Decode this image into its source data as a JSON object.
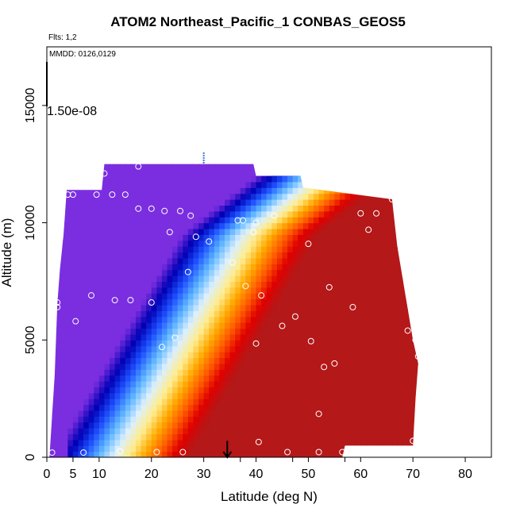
{
  "header": {
    "title": "ATOM2 Northeast_Pacific_1 CONBAS_GEOS5",
    "flights": "Flts: 1,2",
    "date_range": "MMDD: 0126,0129",
    "color_scale_label": "1.50e-08"
  },
  "chart_data": {
    "type": "heatmap",
    "title": "ATOM2 Northeast_Pacific_1 CONBAS_GEOS5",
    "xlabel": "Latitude (deg N)",
    "ylabel": "Altitude (m)",
    "xlim": [
      0,
      85
    ],
    "ylim": [
      0,
      17500
    ],
    "x_ticks": [
      0,
      5,
      10,
      20,
      30,
      40,
      50,
      60,
      70,
      80
    ],
    "x_minor_ticks": [
      37,
      47,
      57
    ],
    "y_ticks": [
      0,
      5000,
      10000,
      15000
    ],
    "grid": false,
    "colormap": [
      "#7b2ee0",
      "#0000b4",
      "#1e50ff",
      "#5cb4ff",
      "#dcf0ff",
      "#ffec8c",
      "#ffaa00",
      "#ff5a00",
      "#e00000",
      "#b41818"
    ],
    "curtain_profile": [
      {
        "lat": 0.5,
        "alt_top": 0
      },
      {
        "lat": 1.5,
        "alt_top": 3500
      },
      {
        "lat": 2,
        "alt_top": 6500
      },
      {
        "lat": 2.5,
        "alt_top": 8000
      },
      {
        "lat": 3.2,
        "alt_top": 9500
      },
      {
        "lat": 3.8,
        "alt_top": 11400
      },
      {
        "lat": 10.5,
        "alt_top": 11400
      },
      {
        "lat": 11,
        "alt_top": 12500
      },
      {
        "lat": 39.5,
        "alt_top": 12500
      },
      {
        "lat": 40,
        "alt_top": 12000
      },
      {
        "lat": 48.5,
        "alt_top": 12000
      },
      {
        "lat": 49,
        "alt_top": 11500
      },
      {
        "lat": 66,
        "alt_top": 11000
      },
      {
        "lat": 67,
        "alt_top": 9000
      },
      {
        "lat": 68.5,
        "alt_top": 7000
      },
      {
        "lat": 70,
        "alt_top": 5000
      },
      {
        "lat": 71,
        "alt_top": 4000
      },
      {
        "lat": 70.5,
        "alt_top": 2500
      },
      {
        "lat": 70,
        "alt_top": 500
      },
      {
        "lat": 57,
        "alt_top": 500
      },
      {
        "lat": 56.5,
        "alt_top": 0
      }
    ],
    "sample_points": [
      {
        "lat": 1,
        "alt": 200
      },
      {
        "lat": 7,
        "alt": 200
      },
      {
        "lat": 14,
        "alt": 250
      },
      {
        "lat": 21,
        "alt": 220
      },
      {
        "lat": 26,
        "alt": 220
      },
      {
        "lat": 40.5,
        "alt": 650
      },
      {
        "lat": 46,
        "alt": 220
      },
      {
        "lat": 52,
        "alt": 220
      },
      {
        "lat": 56.5,
        "alt": 220
      },
      {
        "lat": 70,
        "alt": 700
      },
      {
        "lat": 52,
        "alt": 1850
      },
      {
        "lat": 53,
        "alt": 3850
      },
      {
        "lat": 55,
        "alt": 4000
      },
      {
        "lat": 71,
        "alt": 4300
      },
      {
        "lat": 50.5,
        "alt": 4950
      },
      {
        "lat": 40,
        "alt": 4850
      },
      {
        "lat": 22,
        "alt": 4700
      },
      {
        "lat": 24.5,
        "alt": 5100
      },
      {
        "lat": 70.5,
        "alt": 5000
      },
      {
        "lat": 69,
        "alt": 5400
      },
      {
        "lat": 45,
        "alt": 5600
      },
      {
        "lat": 47.5,
        "alt": 6000
      },
      {
        "lat": 5.5,
        "alt": 5800
      },
      {
        "lat": 2,
        "alt": 6400
      },
      {
        "lat": 2,
        "alt": 6600
      },
      {
        "lat": 8.5,
        "alt": 6900
      },
      {
        "lat": 13,
        "alt": 6700
      },
      {
        "lat": 16,
        "alt": 6700
      },
      {
        "lat": 20,
        "alt": 6600
      },
      {
        "lat": 41,
        "alt": 6900
      },
      {
        "lat": 38,
        "alt": 7300
      },
      {
        "lat": 54,
        "alt": 7250
      },
      {
        "lat": 58.5,
        "alt": 6400
      },
      {
        "lat": 27,
        "alt": 7900
      },
      {
        "lat": 35.5,
        "alt": 8300
      },
      {
        "lat": 28.5,
        "alt": 9400
      },
      {
        "lat": 31,
        "alt": 9200
      },
      {
        "lat": 50,
        "alt": 9100
      },
      {
        "lat": 39.5,
        "alt": 9600
      },
      {
        "lat": 61.5,
        "alt": 9700
      },
      {
        "lat": 23.5,
        "alt": 9600
      },
      {
        "lat": 36.5,
        "alt": 10100
      },
      {
        "lat": 37.5,
        "alt": 10100
      },
      {
        "lat": 40,
        "alt": 10000
      },
      {
        "lat": 43.5,
        "alt": 10300
      },
      {
        "lat": 60,
        "alt": 10400
      },
      {
        "lat": 63,
        "alt": 10400
      },
      {
        "lat": 17.5,
        "alt": 10600
      },
      {
        "lat": 20,
        "alt": 10600
      },
      {
        "lat": 22.5,
        "alt": 10500
      },
      {
        "lat": 25.5,
        "alt": 10500
      },
      {
        "lat": 27.5,
        "alt": 10300
      },
      {
        "lat": 4,
        "alt": 11200
      },
      {
        "lat": 5,
        "alt": 11200
      },
      {
        "lat": 9.5,
        "alt": 11200
      },
      {
        "lat": 12.5,
        "alt": 11200
      },
      {
        "lat": 15,
        "alt": 11200
      },
      {
        "lat": 66,
        "alt": 11000
      },
      {
        "lat": 11,
        "alt": 12100
      },
      {
        "lat": 17.5,
        "alt": 12400
      }
    ],
    "vertical_marker": {
      "lat": 30,
      "alt_from": 12500,
      "alt_to": 13000
    },
    "arrow_marker": {
      "lat": 34.5,
      "alt_from": 700,
      "alt_to": 0
    }
  }
}
